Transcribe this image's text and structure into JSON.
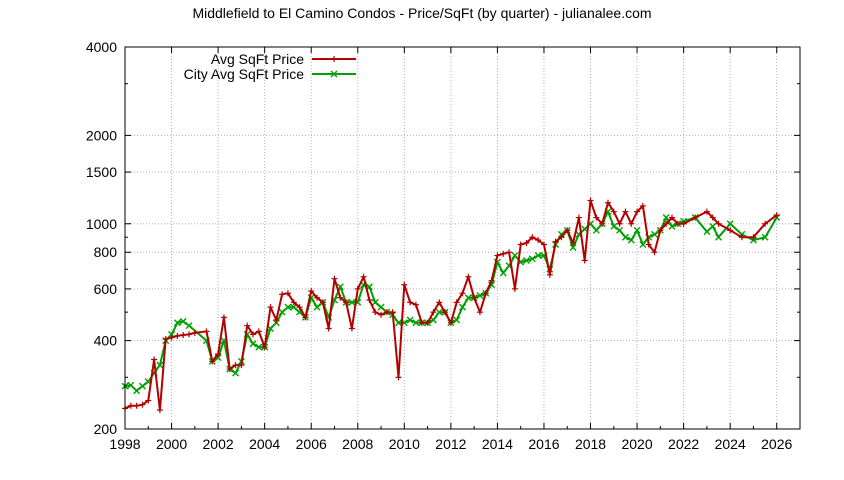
{
  "chart_data": {
    "type": "line",
    "title": "Middlefield to El Camino Condos - Price/SqFt (by quarter) - julianalee.com",
    "xlabel": "",
    "ylabel": "",
    "xlim": [
      1998,
      2027
    ],
    "ylim": [
      200,
      4000
    ],
    "y_scale": "log",
    "grid": true,
    "legend_position": "top-left",
    "x_ticks": [
      "1998",
      "2000",
      "2002",
      "2004",
      "2006",
      "2008",
      "2010",
      "2012",
      "2014",
      "2016",
      "2018",
      "2020",
      "2022",
      "2024",
      "2026"
    ],
    "y_ticks": [
      {
        "value": 200,
        "label": "200"
      },
      {
        "value": 400,
        "label": "400"
      },
      {
        "value": 600,
        "label": "600"
      },
      {
        "value": 800,
        "label": "800"
      },
      {
        "value": 1000,
        "label": "1000"
      },
      {
        "value": 1500,
        "label": "1500"
      },
      {
        "value": 2000,
        "label": "2000"
      },
      {
        "value": 4000,
        "label": "4000"
      }
    ],
    "series": [
      {
        "name": "Avg SqFt Price",
        "color": "#b30000",
        "marker": "plus",
        "x": [
          1998.0,
          1998.25,
          1998.5,
          1998.75,
          1999.0,
          1999.25,
          1999.5,
          1999.75,
          2000.0,
          2000.25,
          2000.5,
          2000.75,
          2001.0,
          2001.5,
          2001.75,
          2002.0,
          2002.25,
          2002.5,
          2002.75,
          2003.0,
          2003.25,
          2003.5,
          2003.75,
          2004.0,
          2004.25,
          2004.5,
          2004.75,
          2005.0,
          2005.25,
          2005.5,
          2005.75,
          2006.0,
          2006.25,
          2006.5,
          2006.75,
          2007.0,
          2007.25,
          2007.5,
          2007.75,
          2008.0,
          2008.25,
          2008.5,
          2008.75,
          2009.0,
          2009.25,
          2009.5,
          2009.75,
          2010.0,
          2010.25,
          2010.5,
          2010.75,
          2011.0,
          2011.25,
          2011.5,
          2011.75,
          2012.0,
          2012.25,
          2012.5,
          2012.75,
          2013.0,
          2013.25,
          2013.5,
          2013.75,
          2014.0,
          2014.25,
          2014.5,
          2014.75,
          2015.0,
          2015.25,
          2015.5,
          2015.75,
          2016.0,
          2016.25,
          2016.5,
          2016.75,
          2017.0,
          2017.25,
          2017.5,
          2017.75,
          2018.0,
          2018.25,
          2018.5,
          2018.75,
          2019.0,
          2019.25,
          2019.5,
          2019.75,
          2020.0,
          2020.25,
          2020.5,
          2020.75,
          2021.0,
          2021.25,
          2021.5,
          2021.75,
          2022.0,
          2022.5,
          2023.0,
          2023.25,
          2023.5,
          2024.0,
          2024.5,
          2025.0,
          2025.5,
          2026.0
        ],
        "y": [
          235,
          240,
          240,
          242,
          250,
          345,
          232,
          405,
          410,
          415,
          418,
          420,
          425,
          430,
          340,
          360,
          480,
          320,
          330,
          330,
          450,
          420,
          430,
          380,
          520,
          470,
          575,
          580,
          540,
          520,
          480,
          590,
          560,
          540,
          440,
          650,
          560,
          540,
          440,
          600,
          660,
          550,
          500,
          490,
          500,
          500,
          300,
          620,
          540,
          530,
          460,
          460,
          500,
          540,
          500,
          460,
          540,
          580,
          660,
          560,
          500,
          580,
          640,
          780,
          790,
          800,
          600,
          850,
          860,
          900,
          880,
          850,
          670,
          870,
          900,
          950,
          860,
          1050,
          750,
          1200,
          1050,
          1000,
          1180,
          1100,
          1000,
          1100,
          1000,
          1100,
          1150,
          850,
          800,
          950,
          1000,
          1050,
          1000,
          1000,
          1050,
          1100,
          1050,
          1000,
          950,
          900,
          900,
          1000,
          1070
        ]
      },
      {
        "name": "City Avg SqFt Price",
        "color": "#00a000",
        "marker": "cross",
        "x": [
          1998.0,
          1998.25,
          1998.5,
          1998.75,
          1999.0,
          1999.25,
          1999.5,
          1999.75,
          2000.0,
          2000.25,
          2000.5,
          2000.75,
          2001.5,
          2001.75,
          2002.0,
          2002.25,
          2002.5,
          2002.75,
          2003.0,
          2003.25,
          2003.5,
          2003.75,
          2004.0,
          2004.25,
          2004.5,
          2004.75,
          2005.0,
          2005.25,
          2005.5,
          2005.75,
          2006.0,
          2006.25,
          2006.5,
          2006.75,
          2007.0,
          2007.25,
          2007.5,
          2007.75,
          2008.0,
          2008.25,
          2008.5,
          2008.75,
          2009.0,
          2009.25,
          2009.5,
          2009.75,
          2010.0,
          2010.25,
          2010.5,
          2010.75,
          2011.0,
          2011.25,
          2011.5,
          2011.75,
          2012.0,
          2012.25,
          2012.5,
          2012.75,
          2013.0,
          2013.25,
          2013.5,
          2013.75,
          2014.0,
          2014.25,
          2014.5,
          2014.75,
          2015.0,
          2015.25,
          2015.5,
          2015.75,
          2016.0,
          2016.25,
          2016.5,
          2016.75,
          2017.0,
          2017.25,
          2017.5,
          2017.75,
          2018.0,
          2018.25,
          2018.5,
          2018.75,
          2019.0,
          2019.25,
          2019.5,
          2019.75,
          2020.0,
          2020.25,
          2020.5,
          2020.75,
          2021.0,
          2021.25,
          2021.5,
          2021.75,
          2022.0,
          2022.5,
          2023.0,
          2023.25,
          2023.5,
          2024.0,
          2024.5,
          2025.0,
          2025.5,
          2026.0
        ],
        "y": [
          280,
          282,
          270,
          280,
          290,
          310,
          330,
          400,
          420,
          460,
          465,
          450,
          400,
          340,
          350,
          400,
          320,
          310,
          340,
          420,
          390,
          380,
          380,
          440,
          460,
          500,
          520,
          520,
          500,
          480,
          560,
          520,
          540,
          480,
          550,
          610,
          540,
          540,
          540,
          620,
          610,
          540,
          520,
          500,
          490,
          460,
          460,
          470,
          460,
          460,
          460,
          470,
          500,
          500,
          460,
          470,
          520,
          560,
          560,
          570,
          580,
          620,
          740,
          680,
          720,
          780,
          740,
          750,
          760,
          780,
          780,
          700,
          850,
          920,
          950,
          830,
          920,
          960,
          1000,
          950,
          1000,
          1100,
          980,
          950,
          900,
          880,
          950,
          850,
          900,
          920,
          950,
          1050,
          980,
          1000,
          1020,
          1050,
          940,
          980,
          900,
          1000,
          920,
          880,
          900,
          1050
        ]
      }
    ]
  }
}
